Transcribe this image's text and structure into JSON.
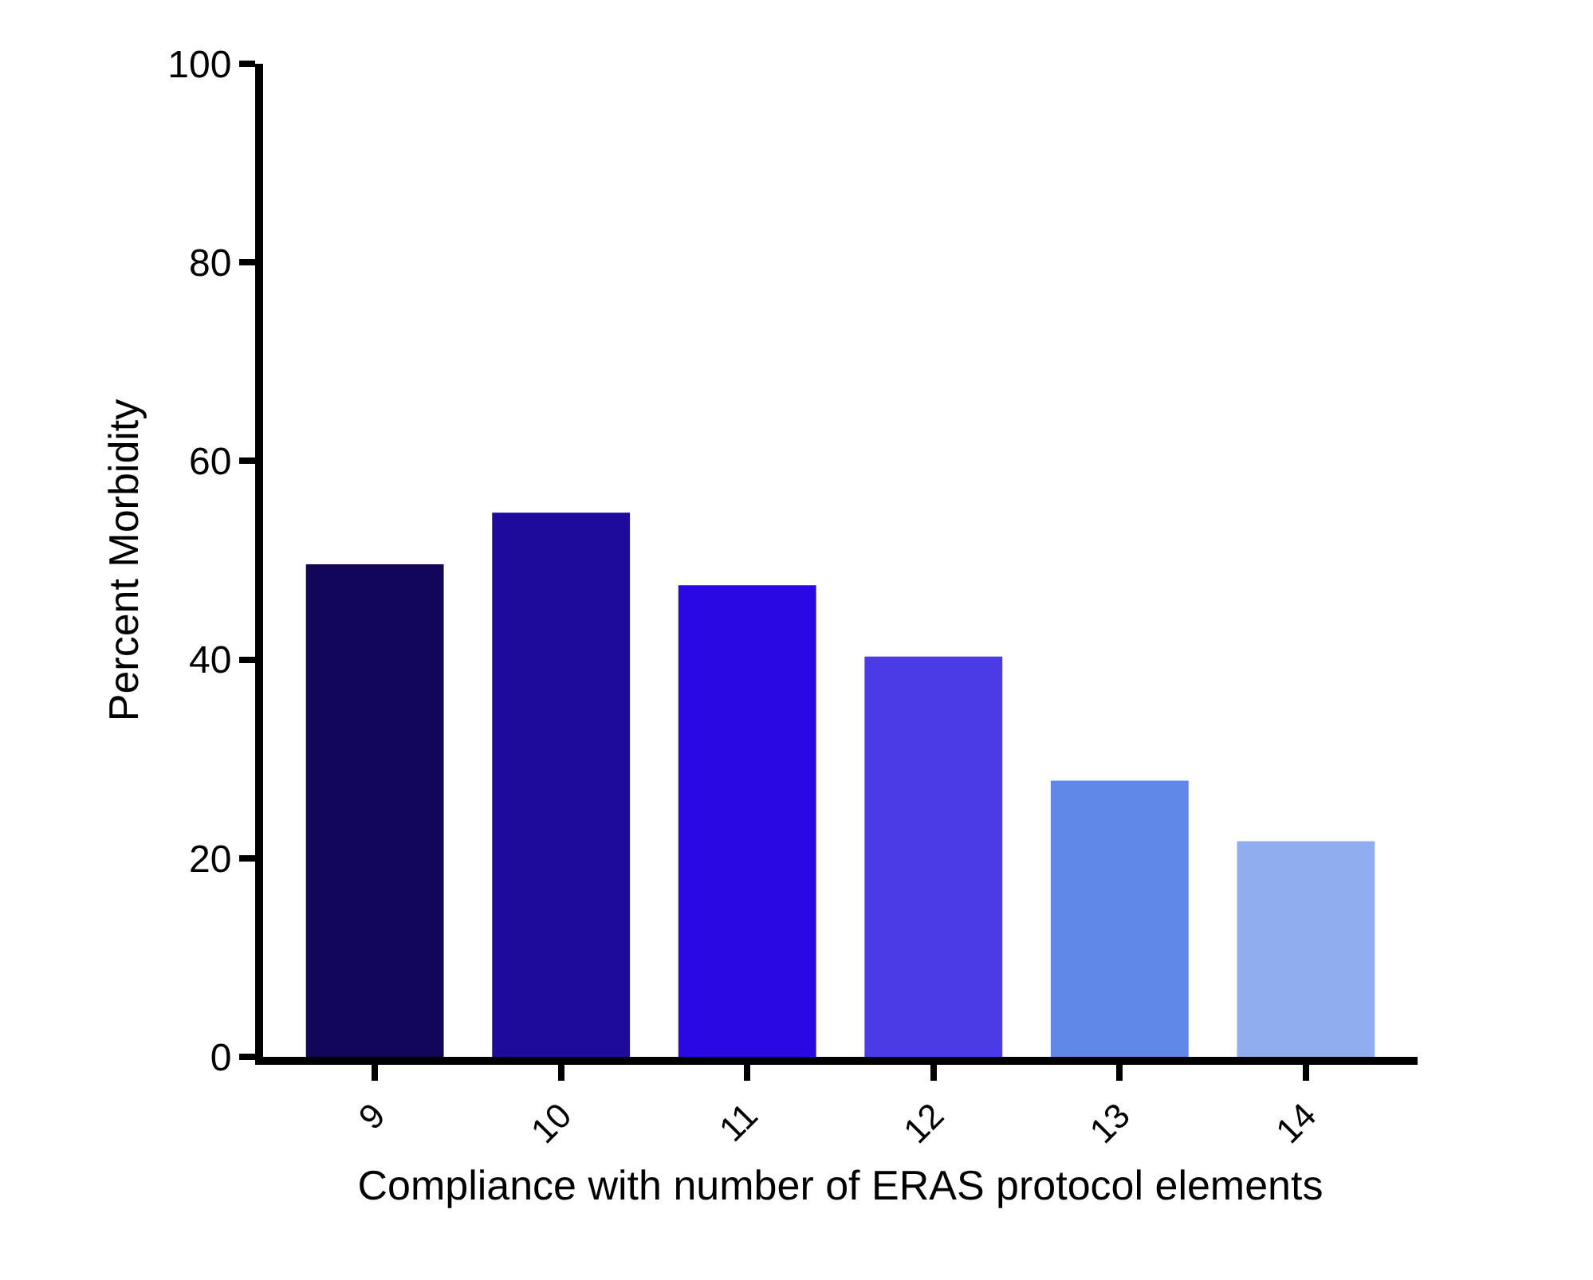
{
  "chart_data": {
    "type": "bar",
    "xlabel": "Compliance with number of ERAS protocol elements",
    "ylabel": "Percent Morbidity",
    "categories": [
      "9",
      "10",
      "11",
      "12",
      "13",
      "14"
    ],
    "values": [
      49.6,
      54.8,
      47.5,
      40.3,
      27.8,
      21.7
    ],
    "colors": [
      "#12065a",
      "#1e0b9c",
      "#2a08e4",
      "#4b3be6",
      "#6088e8",
      "#90adef"
    ],
    "ylim": [
      0,
      100
    ],
    "yticks": [
      0,
      20,
      40,
      60,
      80,
      100
    ]
  }
}
